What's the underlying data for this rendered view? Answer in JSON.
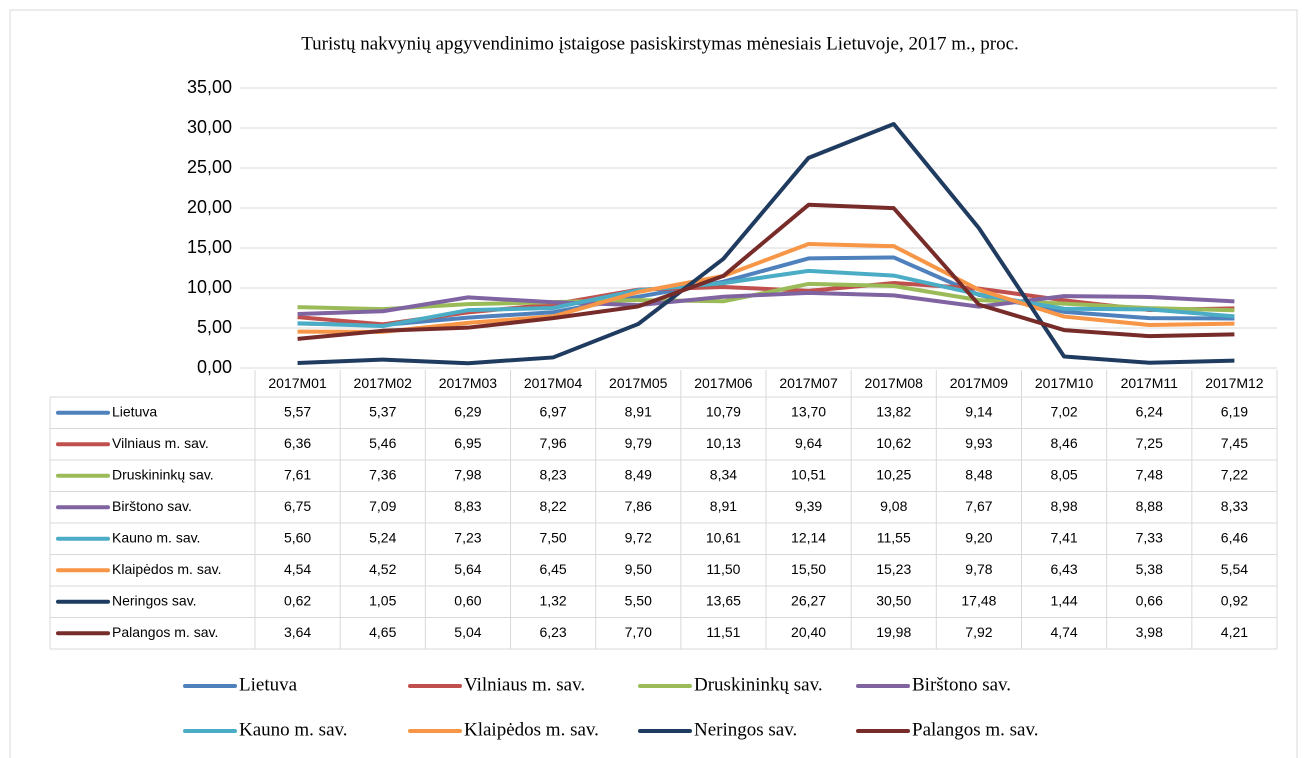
{
  "chart_data": {
    "type": "line",
    "title": "Turistų nakvynių apgyvendinimo įstaigose pasiskirstymas mėnesiais Lietuvoje, 2017 m., proc.",
    "categories": [
      "2017M01",
      "2017M02",
      "2017M03",
      "2017M04",
      "2017M05",
      "2017M06",
      "2017M07",
      "2017M08",
      "2017M09",
      "2017M10",
      "2017M11",
      "2017M12"
    ],
    "ylim": [
      0,
      35
    ],
    "yticks": [
      {
        "value": 0,
        "label": "0,00"
      },
      {
        "value": 5,
        "label": "5,00"
      },
      {
        "value": 10,
        "label": "10,00"
      },
      {
        "value": 15,
        "label": "15,00"
      },
      {
        "value": 20,
        "label": "20,00"
      },
      {
        "value": 25,
        "label": "25,00"
      },
      {
        "value": 30,
        "label": "30,00"
      },
      {
        "value": 35,
        "label": "35,00"
      }
    ],
    "grid": true,
    "series": [
      {
        "name": "Lietuva",
        "color": "#4f81bd",
        "values": [
          5.57,
          5.37,
          6.29,
          6.97,
          8.91,
          10.79,
          13.7,
          13.82,
          9.14,
          7.02,
          6.24,
          6.19
        ],
        "value_labels": [
          "5,57",
          "5,37",
          "6,29",
          "6,97",
          "8,91",
          "10,79",
          "13,70",
          "13,82",
          "9,14",
          "7,02",
          "6,24",
          "6,19"
        ]
      },
      {
        "name": "Vilniaus m. sav.",
        "color": "#c0504d",
        "values": [
          6.36,
          5.46,
          6.95,
          7.96,
          9.79,
          10.13,
          9.64,
          10.62,
          9.93,
          8.46,
          7.25,
          7.45
        ],
        "value_labels": [
          "6,36",
          "5,46",
          "6,95",
          "7,96",
          "9,79",
          "10,13",
          "9,64",
          "10,62",
          "9,93",
          "8,46",
          "7,25",
          "7,45"
        ]
      },
      {
        "name": "Druskininkų sav.",
        "color": "#9bbb59",
        "values": [
          7.61,
          7.36,
          7.98,
          8.23,
          8.49,
          8.34,
          10.51,
          10.25,
          8.48,
          8.05,
          7.48,
          7.22
        ],
        "value_labels": [
          "7,61",
          "7,36",
          "7,98",
          "8,23",
          "8,49",
          "8,34",
          "10,51",
          "10,25",
          "8,48",
          "8,05",
          "7,48",
          "7,22"
        ]
      },
      {
        "name": "Birštono sav.",
        "color": "#8064a2",
        "values": [
          6.75,
          7.09,
          8.83,
          8.22,
          7.86,
          8.91,
          9.39,
          9.08,
          7.67,
          8.98,
          8.88,
          8.33
        ],
        "value_labels": [
          "6,75",
          "7,09",
          "8,83",
          "8,22",
          "7,86",
          "8,91",
          "9,39",
          "9,08",
          "7,67",
          "8,98",
          "8,88",
          "8,33"
        ]
      },
      {
        "name": "Kauno m. sav.",
        "color": "#4bacc6",
        "values": [
          5.6,
          5.24,
          7.23,
          7.5,
          9.72,
          10.61,
          12.14,
          11.55,
          9.2,
          7.41,
          7.33,
          6.46
        ],
        "value_labels": [
          "5,60",
          "5,24",
          "7,23",
          "7,50",
          "9,72",
          "10,61",
          "12,14",
          "11,55",
          "9,20",
          "7,41",
          "7,33",
          "6,46"
        ]
      },
      {
        "name": "Klaipėdos m. sav.",
        "color": "#f79646",
        "values": [
          4.54,
          4.52,
          5.64,
          6.45,
          9.5,
          11.5,
          15.5,
          15.23,
          9.78,
          6.43,
          5.38,
          5.54
        ],
        "value_labels": [
          "4,54",
          "4,52",
          "5,64",
          "6,45",
          "9,50",
          "11,50",
          "15,50",
          "15,23",
          "9,78",
          "6,43",
          "5,38",
          "5,54"
        ]
      },
      {
        "name": "Neringos sav.",
        "color": "#1f3b5f",
        "values": [
          0.62,
          1.05,
          0.6,
          1.32,
          5.5,
          13.65,
          26.27,
          30.5,
          17.48,
          1.44,
          0.66,
          0.92
        ],
        "value_labels": [
          "0,62",
          "1,05",
          "0,60",
          "1,32",
          "5,50",
          "13,65",
          "26,27",
          "30,50",
          "17,48",
          "1,44",
          "0,66",
          "0,92"
        ]
      },
      {
        "name": "Palangos m. sav.",
        "color": "#772c2a",
        "values": [
          3.64,
          4.65,
          5.04,
          6.23,
          7.7,
          11.51,
          20.4,
          19.98,
          7.92,
          4.74,
          3.98,
          4.21
        ],
        "value_labels": [
          "3,64",
          "4,65",
          "5,04",
          "6,23",
          "7,70",
          "11,51",
          "20,40",
          "19,98",
          "7,92",
          "4,74",
          "3,98",
          "4,21"
        ]
      }
    ]
  }
}
